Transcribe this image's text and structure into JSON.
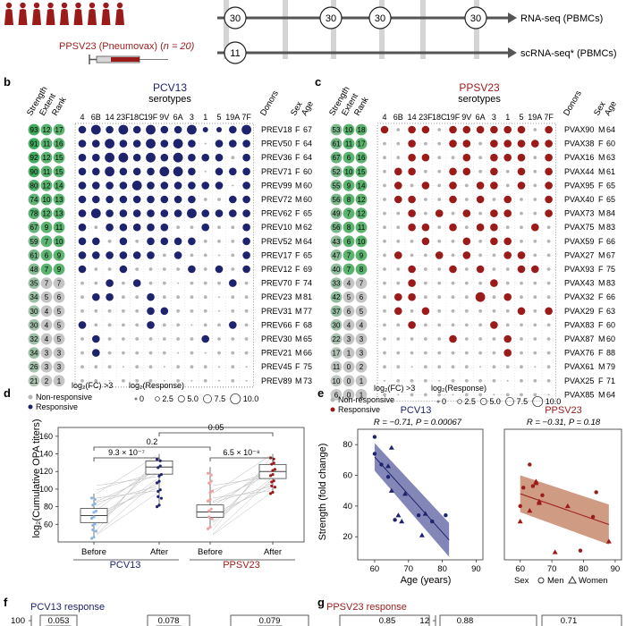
{
  "colors": {
    "pcv": "#1e236e",
    "ppsv": "#9b1b1b",
    "grey": "#b5b5b5",
    "green_hi": "#3aa05a",
    "green_lo": "#c8e0c8",
    "pale_blue": "#8fb4e0",
    "pale_red": "#f0a0a0",
    "fill_blue": "#4a5096",
    "fill_red": "#b5573c"
  },
  "top": {
    "vaccine_label": "PPSV23 (Pneumovax) (",
    "vaccine_n": "n = 20)",
    "timepoints": [
      "30",
      "30",
      "30",
      "30"
    ],
    "sc_timepoint": "11",
    "rnaseq_label": "RNA-seq (PBMCs)",
    "scrnaseq_label": "scRNA-seq* (PBMCs)"
  },
  "panel_b": {
    "letter": "b",
    "title": "PCV13",
    "subtitle": "serotypes",
    "left_headers": [
      "Strength",
      "Extent",
      "Rank"
    ],
    "right_headers": [
      "Donors",
      "Sex",
      "Age"
    ],
    "serotypes": [
      "4",
      "6B",
      "14",
      "23F",
      "18C",
      "19F",
      "9V",
      "6A",
      "3",
      "1",
      "5",
      "19A",
      "7F"
    ],
    "rows": [
      {
        "s": "93",
        "e": "12",
        "r": "17",
        "donor": "PREV18",
        "sex": "F",
        "age": "67"
      },
      {
        "s": "91",
        "e": "11",
        "r": "16",
        "donor": "PREV50",
        "sex": "F",
        "age": "64"
      },
      {
        "s": "92",
        "e": "12",
        "r": "15",
        "donor": "PREV36",
        "sex": "F",
        "age": "64"
      },
      {
        "s": "90",
        "e": "11",
        "r": "15",
        "donor": "PREV71",
        "sex": "F",
        "age": "60"
      },
      {
        "s": "80",
        "e": "12",
        "r": "14",
        "donor": "PREV99",
        "sex": "M",
        "age": "60"
      },
      {
        "s": "74",
        "e": "10",
        "r": "13",
        "donor": "PREV72",
        "sex": "M",
        "age": "60"
      },
      {
        "s": "78",
        "e": "12",
        "r": "13",
        "donor": "PREV62",
        "sex": "F",
        "age": "65"
      },
      {
        "s": "67",
        "e": "9",
        "r": "11",
        "donor": "PREV10",
        "sex": "M",
        "age": "62"
      },
      {
        "s": "59",
        "e": "7",
        "r": "10",
        "donor": "PREV52",
        "sex": "M",
        "age": "64"
      },
      {
        "s": "61",
        "e": "6",
        "r": "9",
        "donor": "PREV17",
        "sex": "F",
        "age": "65"
      },
      {
        "s": "48",
        "e": "7",
        "r": "9",
        "donor": "PREV12",
        "sex": "F",
        "age": "69"
      },
      {
        "s": "35",
        "e": "7",
        "r": "7",
        "donor": "PREV70",
        "sex": "F",
        "age": "74"
      },
      {
        "s": "34",
        "e": "5",
        "r": "6",
        "donor": "PREV23",
        "sex": "M",
        "age": "81"
      },
      {
        "s": "30",
        "e": "4",
        "r": "5",
        "donor": "PREV31",
        "sex": "M",
        "age": "77"
      },
      {
        "s": "30",
        "e": "4",
        "r": "5",
        "donor": "PREV66",
        "sex": "F",
        "age": "68"
      },
      {
        "s": "32",
        "e": "4",
        "r": "5",
        "donor": "PREV30",
        "sex": "M",
        "age": "65"
      },
      {
        "s": "34",
        "e": "3",
        "r": "3",
        "donor": "PREV21",
        "sex": "M",
        "age": "66"
      },
      {
        "s": "26",
        "e": "3",
        "r": "3",
        "donor": "PREV45",
        "sex": "F",
        "age": "75"
      },
      {
        "s": "21",
        "e": "2",
        "r": "1",
        "donor": "PREV89",
        "sex": "M",
        "age": "73"
      }
    ],
    "grid": [
      [
        3,
        4,
        3,
        4,
        3,
        4,
        3,
        3,
        4,
        2,
        2,
        3,
        4
      ],
      [
        3,
        3,
        4,
        3,
        3,
        4,
        3,
        4,
        3,
        -1,
        3,
        3,
        3
      ],
      [
        3,
        3,
        4,
        4,
        3,
        4,
        3,
        4,
        3,
        3,
        3,
        -2,
        3
      ],
      [
        3,
        3,
        4,
        3,
        3,
        3,
        4,
        4,
        3,
        -1,
        3,
        3,
        3
      ],
      [
        3,
        3,
        3,
        3,
        4,
        3,
        3,
        3,
        3,
        3,
        3,
        -1,
        3
      ],
      [
        3,
        3,
        3,
        3,
        3,
        3,
        3,
        3,
        3,
        -2,
        -2,
        3,
        3
      ],
      [
        3,
        4,
        3,
        3,
        3,
        3,
        3,
        3,
        4,
        3,
        3,
        3,
        3
      ],
      [
        3,
        -2,
        3,
        3,
        3,
        3,
        3,
        -2,
        -2,
        3,
        -2,
        -2,
        3
      ],
      [
        3,
        3,
        -2,
        3,
        -2,
        3,
        3,
        3,
        3,
        -2,
        -2,
        -2,
        3
      ],
      [
        3,
        3,
        3,
        3,
        3,
        3,
        -2,
        3,
        -2,
        -2,
        -1,
        -2,
        3
      ],
      [
        3,
        -2,
        -2,
        3,
        -2,
        -2,
        -2,
        -2,
        3,
        -2,
        3,
        -2,
        3
      ],
      [
        -2,
        -2,
        3,
        -2,
        3,
        -2,
        -2,
        -1,
        -2,
        -2,
        -2,
        3,
        -2
      ],
      [
        -2,
        3,
        3,
        -2,
        -2,
        3,
        -2,
        -2,
        -2,
        -2,
        -1,
        -2,
        -2
      ],
      [
        -2,
        -2,
        -2,
        -2,
        -2,
        3,
        3,
        -2,
        -2,
        -2,
        -1,
        -2,
        -2
      ],
      [
        3,
        -2,
        -2,
        -2,
        -2,
        3,
        -2,
        -2,
        -1,
        -2,
        -2,
        3,
        -2
      ],
      [
        -2,
        3,
        -2,
        -2,
        -2,
        -2,
        -2,
        -2,
        -2,
        3,
        -2,
        -2,
        -2
      ],
      [
        -2,
        3,
        -2,
        -2,
        -2,
        -2,
        -2,
        -1,
        -2,
        -1,
        -2,
        -2,
        -2
      ],
      [
        -2,
        -2,
        -2,
        -1,
        -2,
        -2,
        -1,
        -2,
        -2,
        -2,
        -1,
        -2,
        -1
      ],
      [
        -2,
        -2,
        -1,
        -2,
        -2,
        -2,
        -1,
        -2,
        -1,
        -2,
        -1,
        -2,
        -1
      ]
    ],
    "legend": {
      "non_responsive": "Non-responsive",
      "responsive": "Responsive",
      "fc_label": "log₂(FC) >3",
      "resp_label": "log₂(Response)",
      "sizes": [
        "0",
        "2.5",
        "5.0",
        "7.5",
        "10.0"
      ]
    }
  },
  "panel_c": {
    "letter": "c",
    "title": "PPSV23",
    "subtitle": "serotypes",
    "left_headers": [
      "Strength",
      "Extent",
      "Rank"
    ],
    "right_headers": [
      "Donors",
      "Sex",
      "Age"
    ],
    "serotypes": [
      "4",
      "6B",
      "14",
      "23F",
      "18C",
      "19F",
      "9V",
      "6A",
      "3",
      "1",
      "5",
      "19A",
      "7F"
    ],
    "rows": [
      {
        "s": "53",
        "e": "10",
        "r": "18",
        "donor": "PVAX90",
        "sex": "M",
        "age": "64"
      },
      {
        "s": "61",
        "e": "11",
        "r": "17",
        "donor": "PVAX38",
        "sex": "F",
        "age": "60"
      },
      {
        "s": "67",
        "e": "6",
        "r": "16",
        "donor": "PVAX16",
        "sex": "M",
        "age": "63"
      },
      {
        "s": "52",
        "e": "10",
        "r": "15",
        "donor": "PVAX44",
        "sex": "M",
        "age": "61"
      },
      {
        "s": "55",
        "e": "9",
        "r": "14",
        "donor": "PVAX95",
        "sex": "F",
        "age": "65"
      },
      {
        "s": "56",
        "e": "8",
        "r": "12",
        "donor": "PVAX40",
        "sex": "F",
        "age": "65"
      },
      {
        "s": "49",
        "e": "7",
        "r": "12",
        "donor": "PVAX73",
        "sex": "M",
        "age": "84"
      },
      {
        "s": "56",
        "e": "8",
        "r": "11",
        "donor": "PVAX75",
        "sex": "M",
        "age": "83"
      },
      {
        "s": "43",
        "e": "6",
        "r": "10",
        "donor": "PVAX59",
        "sex": "F",
        "age": "66"
      },
      {
        "s": "47",
        "e": "7",
        "r": "9",
        "donor": "PVAX27",
        "sex": "M",
        "age": "67"
      },
      {
        "s": "40",
        "e": "7",
        "r": "8",
        "donor": "PVAX93",
        "sex": "F",
        "age": "75"
      },
      {
        "s": "33",
        "e": "4",
        "r": "7",
        "donor": "PVAX43",
        "sex": "M",
        "age": "83"
      },
      {
        "s": "42",
        "e": "5",
        "r": "6",
        "donor": "PVAX32",
        "sex": "F",
        "age": "66"
      },
      {
        "s": "37",
        "e": "6",
        "r": "5",
        "donor": "PVAX29",
        "sex": "F",
        "age": "63"
      },
      {
        "s": "30",
        "e": "4",
        "r": "4",
        "donor": "PVAX83",
        "sex": "F",
        "age": "60"
      },
      {
        "s": "22",
        "e": "3",
        "r": "3",
        "donor": "PVAX87",
        "sex": "M",
        "age": "60"
      },
      {
        "s": "17",
        "e": "1",
        "r": "3",
        "donor": "PVAX76",
        "sex": "F",
        "age": "88"
      },
      {
        "s": "11",
        "e": "0",
        "r": "2",
        "donor": "PVAX61",
        "sex": "M",
        "age": "79"
      },
      {
        "s": "10",
        "e": "0",
        "r": "1",
        "donor": "PVAX25",
        "sex": "F",
        "age": "71"
      },
      {
        "s": "6",
        "e": "0",
        "r": "1",
        "donor": "PVAX85",
        "sex": "M",
        "age": "64"
      }
    ],
    "grid": [
      [
        3,
        -2,
        3,
        3,
        -2,
        3,
        3,
        3,
        3,
        3,
        3,
        -2,
        3
      ],
      [
        -2,
        -2,
        3,
        -2,
        -2,
        3,
        3,
        -2,
        3,
        3,
        3,
        3,
        3
      ],
      [
        -2,
        -2,
        3,
        3,
        -2,
        -2,
        3,
        -2,
        3,
        3,
        3,
        -2,
        3
      ],
      [
        -2,
        3,
        3,
        -2,
        -2,
        3,
        3,
        -2,
        3,
        -2,
        3,
        -2,
        3
      ],
      [
        -2,
        3,
        -2,
        3,
        -2,
        3,
        -2,
        3,
        3,
        -2,
        3,
        -2,
        3
      ],
      [
        -2,
        3,
        3,
        -2,
        -2,
        3,
        -2,
        3,
        -2,
        3,
        -2,
        -2,
        3
      ],
      [
        -2,
        -2,
        3,
        -2,
        3,
        -2,
        3,
        -2,
        3,
        3,
        -2,
        -2,
        3
      ],
      [
        -2,
        -2,
        3,
        3,
        -2,
        3,
        -2,
        3,
        3,
        -2,
        -2,
        3,
        -2
      ],
      [
        -2,
        -2,
        -2,
        3,
        -2,
        -2,
        3,
        -2,
        3,
        3,
        -2,
        -2,
        -2
      ],
      [
        -2,
        3,
        -2,
        -2,
        3,
        -2,
        3,
        -2,
        -2,
        3,
        3,
        -2,
        -2
      ],
      [
        -2,
        -2,
        3,
        -2,
        -2,
        3,
        -2,
        3,
        -2,
        -2,
        3,
        3,
        -2
      ],
      [
        -2,
        -2,
        3,
        -2,
        -2,
        -2,
        -2,
        -2,
        3,
        -2,
        -2,
        -2,
        -2
      ],
      [
        -2,
        3,
        3,
        -2,
        -2,
        -2,
        -2,
        4,
        -2,
        3,
        -2,
        -2,
        -2
      ],
      [
        -2,
        3,
        -2,
        3,
        -2,
        -2,
        -2,
        -2,
        -2,
        -2,
        3,
        -2,
        3
      ],
      [
        -2,
        -2,
        3,
        -2,
        -2,
        -2,
        -2,
        -2,
        3,
        -2,
        -2,
        -2,
        -2
      ],
      [
        -2,
        -2,
        -2,
        -2,
        -2,
        3,
        -2,
        -2,
        -2,
        3,
        -2,
        -2,
        -2
      ],
      [
        -2,
        -2,
        -2,
        -2,
        -2,
        -2,
        -2,
        -2,
        -2,
        3,
        -2,
        -2,
        -2
      ],
      [
        -2,
        -2,
        -1,
        -2,
        -2,
        -2,
        -2,
        -1,
        -2,
        -2,
        -2,
        -1,
        -2
      ],
      [
        -1,
        -2,
        -2,
        -2,
        -1,
        -2,
        -2,
        -2,
        -2,
        -1,
        -2,
        -2,
        -2
      ],
      [
        -2,
        -1,
        -2,
        -2,
        -2,
        -1,
        -2,
        -2,
        -1,
        -2,
        -2,
        -2,
        -1
      ]
    ],
    "legend": {
      "non_responsive": "Non-responsive",
      "responsive": "Responsive",
      "fc_label": "log₂(FC) >3",
      "resp_label": "log₂(Response)",
      "sizes": [
        "0",
        "2.5",
        "5.0",
        "7.5",
        "10.0"
      ]
    }
  },
  "panel_d": {
    "letter": "d",
    "ylabel": "log₂(Cumulative OPA titers)",
    "yticks": [
      "60",
      "80",
      "100",
      "120",
      "140",
      "160"
    ],
    "xticks": [
      "Before",
      "After",
      "Before",
      "After"
    ],
    "groups": [
      "PCV13",
      "PPSV23"
    ],
    "pvals": {
      "pcv": "9.3 × 10⁻⁷",
      "ppsv": "6.5 × 10⁻⁸",
      "before": "0.2",
      "after": "0.05"
    },
    "chart_data": {
      "type": "box",
      "ylim": [
        40,
        170
      ],
      "boxes": [
        {
          "name": "PCV13 Before",
          "q1": 62,
          "median": 70,
          "q3": 78,
          "lo": 44,
          "hi": 95
        },
        {
          "name": "PCV13 After",
          "q1": 117,
          "median": 125,
          "q3": 132,
          "lo": 80,
          "hi": 140
        },
        {
          "name": "PPSV23 Before",
          "q1": 68,
          "median": 74,
          "q3": 82,
          "lo": 55,
          "hi": 125
        },
        {
          "name": "PPSV23 After",
          "q1": 112,
          "median": 120,
          "q3": 128,
          "lo": 95,
          "hi": 140
        }
      ]
    }
  },
  "panel_e": {
    "letter": "e",
    "ylabel": "Strength (fold change)",
    "xlabel": "Age (years)",
    "left_title": "PCV13",
    "left_stats": "R = −0.71, P = 0.00067",
    "right_title": "PPSV23",
    "right_stats": "R = −0.31, P = 0.18",
    "yticks": [
      "20",
      "40",
      "60",
      "80"
    ],
    "xticks": [
      "60",
      "70",
      "80",
      "90"
    ],
    "sex_label": "Sex",
    "men_label": "Men",
    "women_label": "Women",
    "chart_data": {
      "type": "scatter",
      "xlim": [
        55,
        92
      ],
      "ylim": [
        5,
        90
      ],
      "pcv13": [
        {
          "x": 60,
          "y": 85,
          "sex": "M"
        },
        {
          "x": 60,
          "y": 74,
          "sex": "M"
        },
        {
          "x": 62,
          "y": 67,
          "sex": "M"
        },
        {
          "x": 64,
          "y": 59,
          "sex": "M"
        },
        {
          "x": 64,
          "y": 66,
          "sex": "F"
        },
        {
          "x": 65,
          "y": 78,
          "sex": "F"
        },
        {
          "x": 65,
          "y": 50,
          "sex": "F"
        },
        {
          "x": 66,
          "y": 31,
          "sex": "M"
        },
        {
          "x": 67,
          "y": 34,
          "sex": "F"
        },
        {
          "x": 68,
          "y": 30,
          "sex": "F"
        },
        {
          "x": 69,
          "y": 48,
          "sex": "F"
        },
        {
          "x": 73,
          "y": 34,
          "sex": "M"
        },
        {
          "x": 74,
          "y": 21,
          "sex": "F"
        },
        {
          "x": 75,
          "y": 35,
          "sex": "F"
        },
        {
          "x": 77,
          "y": 30,
          "sex": "M"
        },
        {
          "x": 81,
          "y": 34,
          "sex": "M"
        }
      ],
      "ppsv23": [
        {
          "x": 60,
          "y": 40,
          "sex": "M"
        },
        {
          "x": 60,
          "y": 30,
          "sex": "F"
        },
        {
          "x": 61,
          "y": 52,
          "sex": "M"
        },
        {
          "x": 63,
          "y": 67,
          "sex": "M"
        },
        {
          "x": 63,
          "y": 37,
          "sex": "F"
        },
        {
          "x": 64,
          "y": 53,
          "sex": "M"
        },
        {
          "x": 65,
          "y": 55,
          "sex": "F"
        },
        {
          "x": 65,
          "y": 56,
          "sex": "F"
        },
        {
          "x": 66,
          "y": 43,
          "sex": "F"
        },
        {
          "x": 66,
          "y": 42,
          "sex": "F"
        },
        {
          "x": 67,
          "y": 47,
          "sex": "M"
        },
        {
          "x": 71,
          "y": 10,
          "sex": "F"
        },
        {
          "x": 75,
          "y": 40,
          "sex": "F"
        },
        {
          "x": 79,
          "y": 11,
          "sex": "M"
        },
        {
          "x": 83,
          "y": 33,
          "sex": "M"
        },
        {
          "x": 84,
          "y": 49,
          "sex": "M"
        },
        {
          "x": 88,
          "y": 17,
          "sex": "F"
        }
      ]
    }
  },
  "panel_f": {
    "letter": "f",
    "title": "PCV13 response",
    "ytick": "100",
    "vals": [
      "0.053",
      "0.078",
      "0.079"
    ]
  },
  "panel_g": {
    "letter": "g",
    "title": "PPSV23 response",
    "ytick": "12",
    "vals": [
      "0.85",
      "0.88",
      "0.71"
    ]
  }
}
